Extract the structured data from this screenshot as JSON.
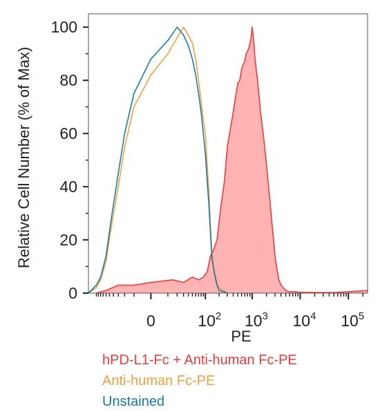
{
  "chart_data": {
    "type": "area",
    "title": "",
    "xlabel": "PE",
    "ylabel": "Relative Cell Number (% of Max)",
    "x_scale": "biexponential",
    "xlim": [
      -150,
      250000
    ],
    "ylim": [
      0,
      105
    ],
    "y_ticks": [
      {
        "value": 0,
        "label": "0"
      },
      {
        "value": 20,
        "label": "20"
      },
      {
        "value": 40,
        "label": "40"
      },
      {
        "value": 60,
        "label": "60"
      },
      {
        "value": 80,
        "label": "80"
      },
      {
        "value": 100,
        "label": "100"
      }
    ],
    "x_ticks": [
      {
        "value": 0,
        "label": "0"
      },
      {
        "value": 100,
        "base": "10",
        "exp": "2"
      },
      {
        "value": 1000,
        "base": "10",
        "exp": "3"
      },
      {
        "value": 10000,
        "base": "10",
        "exp": "4"
      },
      {
        "value": 100000,
        "base": "10",
        "exp": "5"
      }
    ],
    "grid": false,
    "legend_position": "bottom-left",
    "series": [
      {
        "name": "hPD-L1-Fc + Anti-human Fc-PE",
        "color": "#ee3b3b",
        "fill": "#ffb3b3",
        "x": [
          -100,
          -60,
          -30,
          -10,
          0,
          15,
          30,
          50,
          70,
          90,
          110,
          130,
          150,
          180,
          220,
          260,
          300,
          350,
          400,
          450,
          500,
          550,
          600,
          650,
          700,
          750,
          800,
          850,
          900,
          950,
          1000,
          1050,
          1100,
          1150,
          1200,
          1300,
          1400,
          1500,
          1600,
          1700,
          1800,
          1900,
          2000,
          2200,
          2400,
          2600,
          2800,
          3000,
          3300,
          3600,
          4000,
          4500,
          5000,
          6000,
          8000,
          10000,
          20000,
          50000,
          100000,
          250000
        ],
        "y": [
          0,
          1,
          3,
          3,
          4,
          5,
          4,
          6,
          5,
          6,
          8,
          14,
          16,
          20,
          33,
          42,
          55,
          62,
          68,
          74,
          79,
          80,
          84,
          86,
          87,
          90,
          91,
          92,
          94,
          96,
          100,
          97,
          93,
          88,
          85,
          80,
          74,
          68,
          64,
          60,
          56,
          52,
          48,
          40,
          33,
          26,
          20,
          14,
          9,
          5,
          3,
          2,
          1,
          0.5,
          0.5,
          0.3,
          0.2,
          0.2,
          0.5,
          1
        ]
      },
      {
        "name": "Anti-human Fc-PE",
        "color": "#f0a040",
        "fill": "none",
        "x": [
          -150,
          -100,
          -80,
          -60,
          -45,
          -30,
          -20,
          -10,
          0,
          10,
          20,
          30,
          40,
          50,
          60,
          70,
          80,
          90,
          100,
          110,
          120,
          130,
          140,
          160,
          180,
          200,
          250,
          300
        ],
        "y": [
          0,
          2,
          5,
          12,
          25,
          40,
          55,
          70,
          82,
          90,
          96,
          100,
          97,
          94,
          88,
          80,
          72,
          65,
          60,
          48,
          38,
          25,
          15,
          8,
          4,
          2,
          1,
          0
        ]
      },
      {
        "name": "Unstained",
        "color": "#1a7aa6",
        "fill": "none",
        "x": [
          -150,
          -100,
          -80,
          -60,
          -45,
          -30,
          -20,
          -10,
          0,
          10,
          20,
          30,
          40,
          50,
          60,
          70,
          80,
          90,
          100,
          110,
          120,
          130,
          140,
          160,
          180,
          200,
          250,
          300
        ],
        "y": [
          0,
          3,
          6,
          14,
          28,
          45,
          60,
          75,
          88,
          95,
          100,
          97,
          93,
          88,
          82,
          75,
          68,
          60,
          52,
          42,
          33,
          22,
          13,
          7,
          3,
          1,
          0.5,
          0
        ]
      }
    ]
  }
}
